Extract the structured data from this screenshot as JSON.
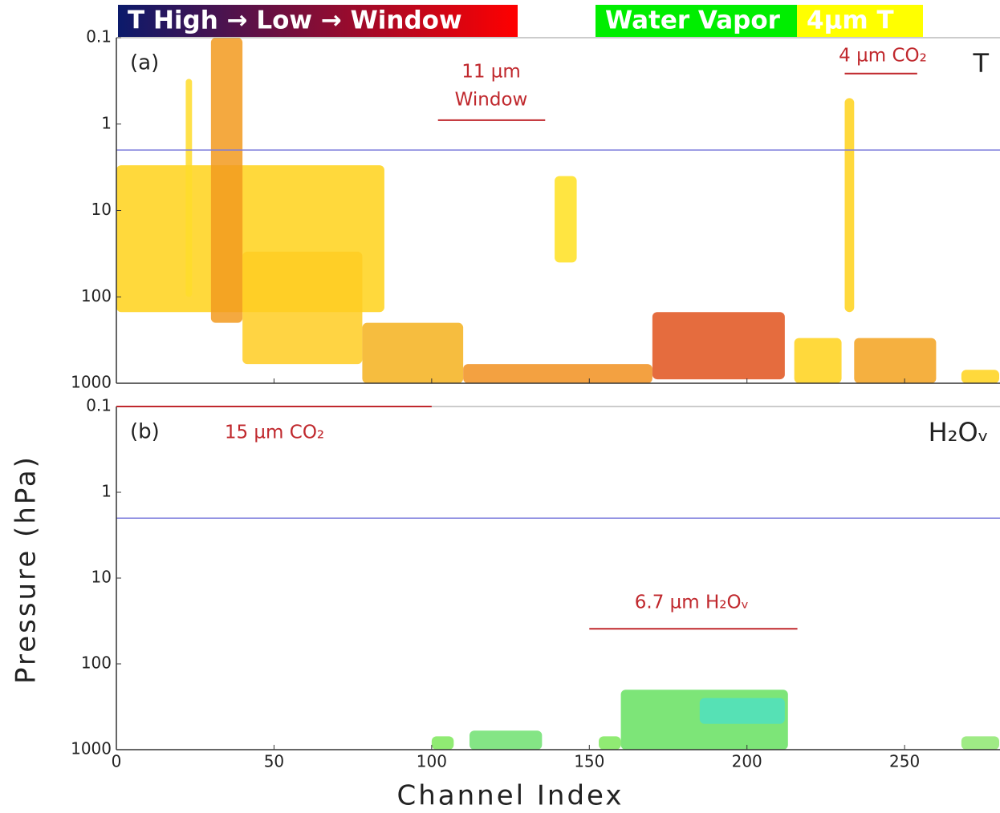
{
  "legend_bar": [
    {
      "label": "T High → Low → Window",
      "colors": [
        "#0b1a6b",
        "#ff0000"
      ]
    },
    {
      "label": "Water Vapor",
      "colors": [
        "#00ee00"
      ]
    },
    {
      "label": "4µm T",
      "colors": [
        "#ffff00"
      ]
    }
  ],
  "axis_labels": {
    "y": "Pressure (hPa)",
    "x": "Channel Index"
  },
  "chart_data": [
    {
      "type": "heatmap",
      "panel": "(a)",
      "variable": "T",
      "xlim": [
        0,
        280
      ],
      "ylim": [
        0.1,
        1000
      ],
      "log_y": true,
      "yticks": [
        0.1,
        1,
        10,
        100,
        1000
      ],
      "reference_line": 2,
      "reference_color": "#7b7bdc",
      "regions": [
        {
          "channels": [
            0,
            85
          ],
          "pressure": [
            3,
            150
          ],
          "color": "#ffd21a"
        },
        {
          "channels": [
            22,
            24
          ],
          "pressure": [
            0.3,
            100
          ],
          "color": "#ffdc2a"
        },
        {
          "channels": [
            30,
            40
          ],
          "pressure": [
            0.1,
            200
          ],
          "color": "#f29a1e"
        },
        {
          "channels": [
            40,
            78
          ],
          "pressure": [
            30,
            600
          ],
          "color": "#ffcc22"
        },
        {
          "channels": [
            78,
            110
          ],
          "pressure": [
            200,
            1000
          ],
          "color": "#f5b21d"
        },
        {
          "channels": [
            110,
            170
          ],
          "pressure": [
            600,
            1000
          ],
          "color": "#f19020"
        },
        {
          "channels": [
            139,
            146
          ],
          "pressure": [
            4,
            40
          ],
          "color": "#ffe020"
        },
        {
          "channels": [
            170,
            212
          ],
          "pressure": [
            150,
            900
          ],
          "color": "#e0521c"
        },
        {
          "channels": [
            215,
            230
          ],
          "pressure": [
            300,
            1000
          ],
          "color": "#ffd21a"
        },
        {
          "channels": [
            231,
            234
          ],
          "pressure": [
            0.5,
            150
          ],
          "color": "#ffd21a"
        },
        {
          "channels": [
            234,
            260
          ],
          "pressure": [
            300,
            1000
          ],
          "color": "#f3a21e"
        },
        {
          "channels": [
            268,
            280
          ],
          "pressure": [
            700,
            1000
          ],
          "color": "#ffd21a"
        }
      ],
      "annotations": [
        {
          "text": "11 µm",
          "line": null
        },
        {
          "text": "Window",
          "line": {
            "x": [
              102,
              136
            ],
            "p": 0.9
          }
        },
        {
          "text": "4 µm CO₂",
          "line": {
            "x": [
              231,
              254
            ],
            "p": 0.26
          }
        }
      ],
      "annotation_color": "#c0282d"
    },
    {
      "type": "heatmap",
      "panel": "(b)",
      "variable": "H₂Oᵥ",
      "xlim": [
        0,
        280
      ],
      "ylim": [
        0.1,
        1000
      ],
      "log_y": true,
      "yticks": [
        0.1,
        1,
        10,
        100,
        1000
      ],
      "xticks": [
        0,
        50,
        100,
        150,
        200,
        250
      ],
      "reference_line": 2,
      "reference_color": "#7b7bdc",
      "regions": [
        {
          "channels": [
            100,
            107
          ],
          "pressure": [
            700,
            1000
          ],
          "color": "#7de85a"
        },
        {
          "channels": [
            112,
            135
          ],
          "pressure": [
            600,
            1000
          ],
          "color": "#6fe070"
        },
        {
          "channels": [
            153,
            160
          ],
          "pressure": [
            700,
            1000
          ],
          "color": "#7de85a"
        },
        {
          "channels": [
            160,
            213
          ],
          "pressure": [
            200,
            1000
          ],
          "color": "#66e060"
        },
        {
          "channels": [
            185,
            212
          ],
          "pressure": [
            250,
            500
          ],
          "color": "#4fe0c0"
        },
        {
          "channels": [
            268,
            280
          ],
          "pressure": [
            700,
            1000
          ],
          "color": "#8ee870"
        }
      ],
      "annotations": [
        {
          "text": "15 µm CO₂",
          "line": {
            "x": [
              0,
              100
            ],
            "p": 0.1
          }
        },
        {
          "text": "6.7 µm H₂Oᵥ",
          "line": {
            "x": [
              150,
              216
            ],
            "p": 39
          }
        }
      ],
      "annotation_color": "#c0282d"
    }
  ]
}
